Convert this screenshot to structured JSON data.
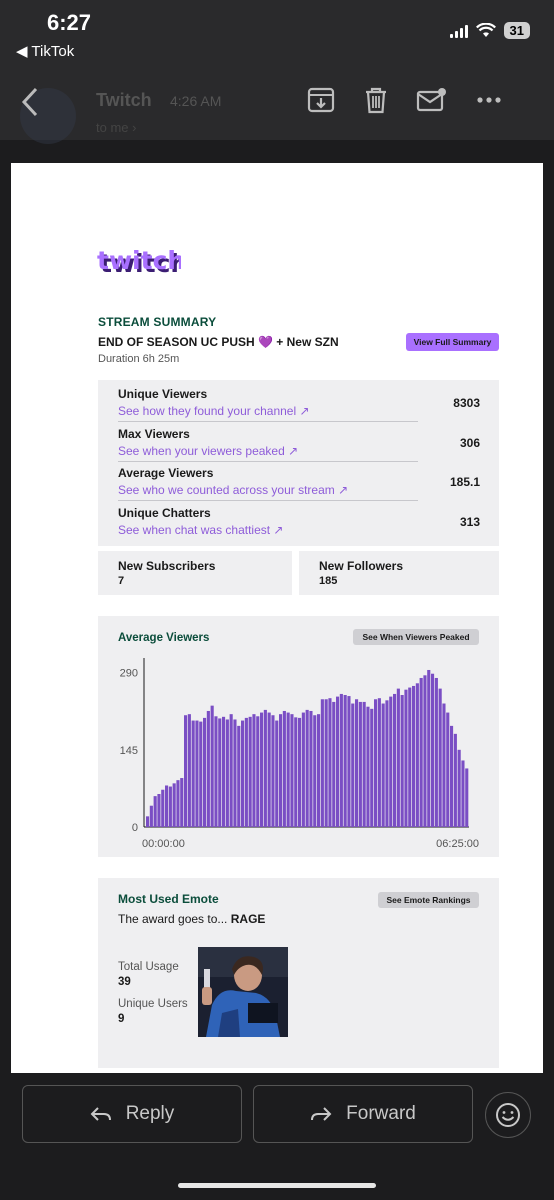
{
  "status": {
    "time": "6:27",
    "back_app": "◀ TikTok",
    "battery": "31"
  },
  "header": {
    "sender": "Twitch",
    "time": "4:26 AM",
    "to": "to me ›"
  },
  "email": {
    "section_label": "STREAM SUMMARY",
    "stream_title": "END OF SEASON UC PUSH 💜 + New SZN",
    "duration": "Duration 6h 25m",
    "view_full_summary": "View Full Summary",
    "stats": [
      {
        "name": "Unique Viewers",
        "link": "See how they found your channel ↗",
        "value": "8303"
      },
      {
        "name": "Max Viewers",
        "link": "See when your viewers peaked ↗",
        "value": "306"
      },
      {
        "name": "Average Viewers",
        "link": "See who we counted across your stream ↗",
        "value": "185.1"
      },
      {
        "name": "Unique Chatters",
        "link": "See when chat was chattiest ↗",
        "value": "313"
      }
    ],
    "new_subscribers": {
      "label": "New Subscribers",
      "value": "7"
    },
    "new_followers": {
      "label": "New Followers",
      "value": "185"
    },
    "chart_section": {
      "title": "Average Viewers",
      "button": "See When Viewers Peaked"
    },
    "emote": {
      "title": "Most Used Emote",
      "button": "See Emote Rankings",
      "award_prefix": "The award goes to...",
      "emote_name": "RAGE",
      "total_usage_label": "Total Usage",
      "total_usage": "39",
      "unique_users_label": "Unique Users",
      "unique_users": "9"
    }
  },
  "footer": {
    "reply": "Reply",
    "forward": "Forward"
  },
  "colors": {
    "twitch_purple": "#9147ff",
    "bar_purple": "#7a4ec4",
    "heading_green": "#0b4d3b"
  },
  "chart_data": {
    "type": "bar",
    "title": "Average Viewers",
    "x_tick_labels": [
      "00:00:00",
      "06:25:00"
    ],
    "y_ticks": [
      0,
      145,
      290
    ],
    "ylim": [
      0,
      310
    ],
    "values": [
      20,
      40,
      58,
      62,
      70,
      78,
      76,
      82,
      88,
      92,
      210,
      212,
      200,
      200,
      198,
      205,
      218,
      228,
      208,
      204,
      207,
      202,
      212,
      202,
      190,
      200,
      205,
      207,
      212,
      208,
      215,
      220,
      215,
      210,
      200,
      212,
      218,
      215,
      212,
      206,
      205,
      215,
      220,
      218,
      210,
      212,
      240,
      240,
      242,
      235,
      245,
      250,
      248,
      246,
      232,
      240,
      235,
      235,
      226,
      222,
      240,
      242,
      232,
      238,
      245,
      250,
      260,
      248,
      258,
      262,
      265,
      270,
      280,
      285,
      295,
      288,
      280,
      260,
      232,
      215,
      190,
      175,
      145,
      125,
      110
    ],
    "grid": false,
    "legend": "none"
  }
}
